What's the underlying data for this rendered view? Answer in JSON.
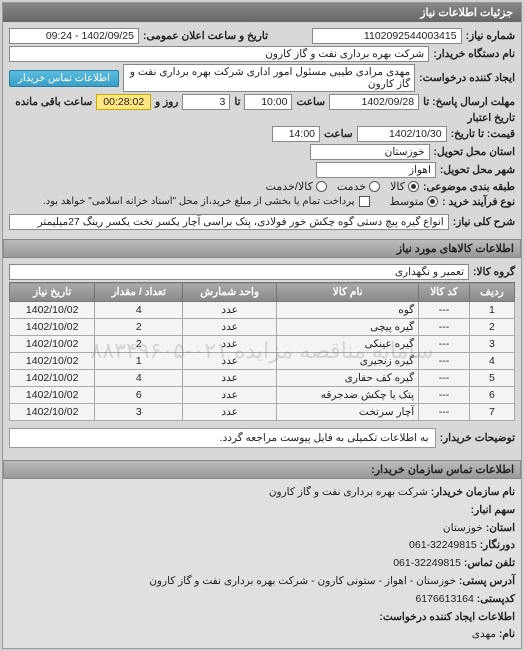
{
  "panel_title": "جزئیات اطلاعات نیاز",
  "header": {
    "req_no_label": "شماره نیاز:",
    "req_no": "1102092544003415",
    "announce_label": "تاریخ و ساعت اعلان عمومی:",
    "announce_val": "1402/09/25 - 09:24"
  },
  "buyer": {
    "org_label": "نام دستگاه خریدار:",
    "org_val": "شرکت بهره برداری نفت و گاز کارون",
    "creator_label": "ایجاد کننده درخواست:",
    "creator_val": "مهدی مرادی طیبی مسئول امور اداری شرکت بهره برداری نفت و گاز کارون",
    "contact_btn": "اطلاعات تماس خریدار"
  },
  "deadline": {
    "send_to_label": "مهلت ارسال پاسخ: تا",
    "send_date": "1402/09/28",
    "time_label": "ساعت",
    "send_time": "10:00",
    "day_label": "تا",
    "days": "3",
    "remain_label": "روز و",
    "remain_time": "00:28:02",
    "remain_suffix": "ساعت باقی مانده",
    "valid_to_label": "تاریخ اعتبار",
    "price_to_label": "قیمت: تا تاریخ:",
    "price_date": "1402/10/30",
    "price_time": "14:00"
  },
  "loc": {
    "state_label": "استان محل تحویل:",
    "state_val": "خوزستان",
    "city_label": "شهر محل تحویل:",
    "city_val": "اهواز"
  },
  "pkg": {
    "label": "طبقه بندی موضوعی:",
    "options": [
      "کالا",
      "خدمت",
      "کالا/خدمت"
    ],
    "selected": 0
  },
  "buy": {
    "label": "نوع فرآیند خرید :",
    "options": [
      "متوسط"
    ],
    "selected": 0,
    "chk_label": "پرداخت تمام یا بخشی از مبلغ خرید،از محل \"اسناد خزانه اسلامی\" خواهد بود.",
    "chk_checked": false
  },
  "need": {
    "title_label": "شرح کلی نیاز:",
    "title_val": "انواع گیره پیچ دستی گوه چکش خور فولادی، پتک براسی آچار یکسر تخت یکسر رینگ 27میلیمتر"
  },
  "goods_header": "اطلاعات کالاهای مورد نیاز",
  "group": {
    "label": "گروه کالا:",
    "val": "تعمیر و نگهداری"
  },
  "table": {
    "columns": [
      "ردیف",
      "کد کالا",
      "نام کالا",
      "واحد شمارش",
      "تعداد / مقدار",
      "تاریخ نیاز"
    ],
    "rows": [
      [
        "1",
        "---",
        "گوه",
        "عدد",
        "4",
        "1402/10/02"
      ],
      [
        "2",
        "---",
        "گیره پیچی",
        "عدد",
        "2",
        "1402/10/02"
      ],
      [
        "3",
        "---",
        "گیره عینکی",
        "عدد",
        "2",
        "1402/10/02"
      ],
      [
        "4",
        "---",
        "گیره زنجیری",
        "عدد",
        "1",
        "1402/10/02"
      ],
      [
        "5",
        "---",
        "گیره کف حفاری",
        "عدد",
        "4",
        "1402/10/02"
      ],
      [
        "6",
        "---",
        "پتک یا چکش ضدجرقه",
        "عدد",
        "6",
        "1402/10/02"
      ],
      [
        "7",
        "---",
        "آچار سرتخت",
        "عدد",
        "3",
        "1402/10/02"
      ]
    ],
    "watermark": "سامانه مناقصه مزایده ۰۲۱-۸۸۳۴۹۶۰۵"
  },
  "buyer_note": {
    "label": "توضیحات خریدار:",
    "val": "به اطلاعات تکمیلی به فایل پیوست مراجعه گردد."
  },
  "contact": {
    "header": "اطلاعات تماس سازمان خریدار:",
    "org_label": "نام سازمان خریدار:",
    "org": "شرکت بهره برداری نفت و گاز کارون",
    "stock_label": "سهم انبار:",
    "stock": "",
    "state_label": "استان:",
    "state": "خوزستان",
    "fax_label": "دورنگار:",
    "fax": "32249815-061",
    "phone_label": "تلفن تماس:",
    "phone": "32249815-061",
    "addr_label": "آدرس پستی:",
    "addr": "خوزستان - اهواز - ستونی کارون - شرکت بهره برداری نفت و گاز کارون",
    "post_label": "کدپستی:",
    "post": "6176613164",
    "creator_hdr": "اطلاعات ایجاد کننده درخواست:",
    "name_label": "نام:",
    "name": "مهدی"
  }
}
